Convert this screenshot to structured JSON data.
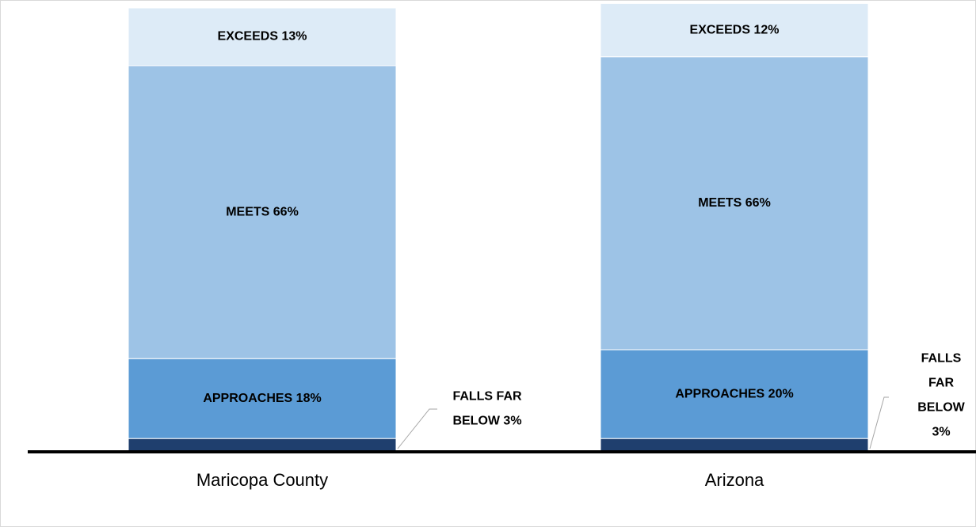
{
  "chart_data": {
    "type": "stacked_bar",
    "categories": [
      "Maricopa County",
      "Arizona"
    ],
    "series": [
      {
        "color": "#1f3f6e",
        "values": [
          3,
          3
        ],
        "value_labels": [
          "FALLS FAR BELOW 3%",
          "FALLS FAR BELOW 3%"
        ]
      },
      {
        "color": "#5b9bd5",
        "values": [
          18,
          20
        ],
        "value_labels": [
          "APPROACHES 18%",
          "APPROACHES 20%"
        ]
      },
      {
        "color": "#9dc3e6",
        "values": [
          66,
          66
        ],
        "value_labels": [
          "MEETS 66%",
          "MEETS 66%"
        ]
      },
      {
        "color": "#ddebf7",
        "values": [
          13,
          12
        ],
        "value_labels": [
          "EXCEEDS 13%",
          "EXCEEDS 12%"
        ]
      }
    ],
    "ylim": [
      0,
      100
    ]
  }
}
